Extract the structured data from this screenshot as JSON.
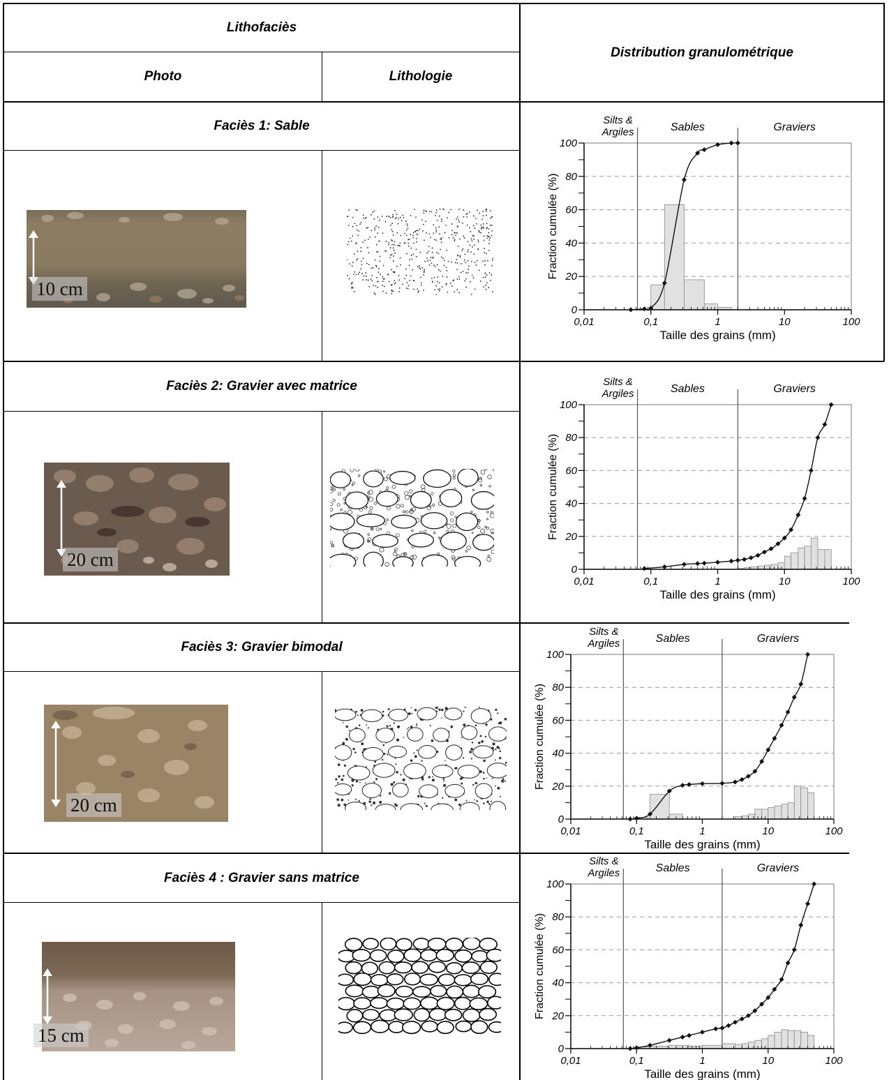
{
  "table": {
    "header_left": "Lithofaciès",
    "header_right": "Distribution granulométrique",
    "sub_photo": "Photo",
    "sub_litho": "Lithologie"
  },
  "facies": [
    {
      "title": "Faciès 1: Sable",
      "scale": "10 cm",
      "pattern": "sand"
    },
    {
      "title": "Faciès 2: Gravier avec matrice",
      "scale": "20 cm",
      "pattern": "gravel-matrix"
    },
    {
      "title": "Faciès 3: Gravier bimodal",
      "scale": "20 cm",
      "pattern": "gravel-bimodal"
    },
    {
      "title": "Faciès 4 : Gravier sans matrice",
      "scale": "15 cm",
      "pattern": "gravel-open"
    }
  ],
  "colors": {
    "border": "#000000",
    "hist_fill": "#e1e1e1",
    "hist_stroke": "#8a8a8a",
    "grid": "#9a9a9a"
  },
  "chart_data": [
    {
      "type": "bar",
      "zones": [
        "Silts & Argiles",
        "Sables",
        "Graviers"
      ],
      "zone_bounds_mm": [
        0.063,
        2
      ],
      "xlabel": "Taille des grains (mm)",
      "ylabel": "Fraction cumulée (%)",
      "xscale": "log",
      "xlim": [
        0.01,
        100
      ],
      "ylim": [
        0,
        100
      ],
      "xticks": [
        "0,01",
        "0,1",
        "1",
        "10",
        "100"
      ],
      "yticks": [
        "0",
        "20",
        "40",
        "60",
        "80",
        "100"
      ],
      "grid": "dashed horizontal",
      "histogram": [
        [
          0.1,
          0.16,
          15
        ],
        [
          0.16,
          0.315,
          63
        ],
        [
          0.315,
          0.63,
          18
        ],
        [
          0.63,
          1.0,
          3.5
        ],
        [
          1.0,
          1.6,
          1.5
        ]
      ],
      "cumulative": [
        [
          0.05,
          0
        ],
        [
          0.08,
          0.5
        ],
        [
          0.1,
          1
        ],
        [
          0.16,
          16
        ],
        [
          0.315,
          78
        ],
        [
          0.5,
          94
        ],
        [
          0.63,
          96
        ],
        [
          1.0,
          99
        ],
        [
          1.6,
          100
        ],
        [
          2,
          100
        ]
      ]
    },
    {
      "type": "bar",
      "zones": [
        "Silts & Argiles",
        "Sables",
        "Graviers"
      ],
      "zone_bounds_mm": [
        0.063,
        2
      ],
      "xlabel": "Taille des grains (mm)",
      "ylabel": "Fraction cumulée (%)",
      "xscale": "log",
      "xlim": [
        0.01,
        100
      ],
      "ylim": [
        0,
        100
      ],
      "xticks": [
        "0,01",
        "0,1",
        "1",
        "10",
        "100"
      ],
      "yticks": [
        "0",
        "20",
        "40",
        "60",
        "80",
        "100"
      ],
      "grid": "dashed horizontal",
      "histogram": [
        [
          2,
          2.5,
          0.5
        ],
        [
          2.5,
          3.15,
          1
        ],
        [
          3.15,
          4,
          1.5
        ],
        [
          4,
          5,
          2
        ],
        [
          5,
          6.3,
          2.5
        ],
        [
          6.3,
          8,
          3
        ],
        [
          8,
          10,
          4
        ],
        [
          10,
          12.5,
          8
        ],
        [
          12.5,
          16,
          10
        ],
        [
          16,
          20,
          13
        ],
        [
          20,
          25,
          14
        ],
        [
          25,
          31.5,
          19
        ],
        [
          31.5,
          40,
          12
        ],
        [
          40,
          50,
          12
        ]
      ],
      "cumulative": [
        [
          0.08,
          0.5
        ],
        [
          0.16,
          1.5
        ],
        [
          0.315,
          3
        ],
        [
          0.5,
          3.5
        ],
        [
          0.63,
          3.7
        ],
        [
          1,
          4.3
        ],
        [
          1.6,
          5
        ],
        [
          2,
          5.5
        ],
        [
          2.5,
          6
        ],
        [
          3.15,
          7
        ],
        [
          4,
          8.5
        ],
        [
          5,
          10.5
        ],
        [
          6.3,
          12.5
        ],
        [
          8,
          15.5
        ],
        [
          10,
          19
        ],
        [
          12.5,
          24
        ],
        [
          16,
          33
        ],
        [
          20,
          43
        ],
        [
          25,
          60
        ],
        [
          31.5,
          80
        ],
        [
          40,
          88
        ],
        [
          50,
          100
        ]
      ]
    },
    {
      "type": "bar",
      "zones": [
        "Silts & Argiles",
        "Sables",
        "Graviers"
      ],
      "zone_bounds_mm": [
        0.063,
        2
      ],
      "xlabel": "Taille des grains (mm)",
      "ylabel": "Fraction cumulée (%)",
      "xscale": "log",
      "xlim": [
        0.01,
        100
      ],
      "ylim": [
        0,
        100
      ],
      "xticks": [
        "0,01",
        "0,1",
        "1",
        "10",
        "100"
      ],
      "yticks": [
        "0",
        "20",
        "40",
        "60",
        "80",
        "100"
      ],
      "grid": "dashed horizontal",
      "histogram": [
        [
          0.1,
          0.16,
          1
        ],
        [
          0.16,
          0.315,
          15
        ],
        [
          0.315,
          0.5,
          3
        ],
        [
          3.15,
          4,
          1.5
        ],
        [
          4,
          5,
          2
        ],
        [
          5,
          6.3,
          3
        ],
        [
          6.3,
          8,
          6
        ],
        [
          8,
          10,
          6
        ],
        [
          10,
          12.5,
          7
        ],
        [
          12.5,
          16,
          8
        ],
        [
          16,
          20,
          9
        ],
        [
          20,
          25,
          10
        ],
        [
          25,
          31.5,
          20
        ],
        [
          31.5,
          40,
          19
        ],
        [
          40,
          50,
          16
        ]
      ],
      "cumulative": [
        [
          0.08,
          0
        ],
        [
          0.1,
          0.5
        ],
        [
          0.16,
          3
        ],
        [
          0.315,
          17
        ],
        [
          0.5,
          20.5
        ],
        [
          0.63,
          21
        ],
        [
          1,
          21.5
        ],
        [
          2,
          21.7
        ],
        [
          3.15,
          22.5
        ],
        [
          4,
          24
        ],
        [
          5,
          26
        ],
        [
          6.3,
          29
        ],
        [
          8,
          35
        ],
        [
          10,
          42
        ],
        [
          12.5,
          49
        ],
        [
          16,
          57
        ],
        [
          20,
          65
        ],
        [
          25,
          74
        ],
        [
          31.5,
          82
        ],
        [
          40,
          100
        ]
      ]
    },
    {
      "type": "bar",
      "zones": [
        "Silts & Argiles",
        "Sables",
        "Graviers"
      ],
      "zone_bounds_mm": [
        0.063,
        2
      ],
      "xlabel": "Taille des grains (mm)",
      "ylabel": "Fraction cumulée (%)",
      "xscale": "log",
      "xlim": [
        0.01,
        100
      ],
      "ylim": [
        0,
        100
      ],
      "xticks": [
        "0,01",
        "0,1",
        "1",
        "10",
        "100"
      ],
      "yticks": [
        "0",
        "20",
        "40",
        "60",
        "80",
        "100"
      ],
      "grid": "dashed horizontal",
      "histogram": [
        [
          0.1,
          0.16,
          1
        ],
        [
          0.16,
          0.315,
          1.5
        ],
        [
          0.315,
          0.63,
          2
        ],
        [
          0.63,
          1,
          1.5
        ],
        [
          1,
          2,
          2
        ],
        [
          2,
          3.15,
          3
        ],
        [
          3.15,
          4,
          2.5
        ],
        [
          4,
          5,
          3
        ],
        [
          5,
          6.3,
          4
        ],
        [
          6.3,
          8,
          5
        ],
        [
          8,
          10,
          6
        ],
        [
          10,
          12.5,
          8
        ],
        [
          12.5,
          16,
          10
        ],
        [
          16,
          20,
          11.5
        ],
        [
          20,
          25,
          11
        ],
        [
          25,
          31.5,
          11
        ],
        [
          31.5,
          40,
          10
        ],
        [
          40,
          50,
          8
        ]
      ],
      "cumulative": [
        [
          0.08,
          0
        ],
        [
          0.1,
          0.5
        ],
        [
          0.16,
          2
        ],
        [
          0.315,
          5
        ],
        [
          0.5,
          7
        ],
        [
          0.63,
          8
        ],
        [
          1,
          10
        ],
        [
          1.6,
          12
        ],
        [
          2,
          12.5
        ],
        [
          2.5,
          14
        ],
        [
          3.15,
          16
        ],
        [
          4,
          18
        ],
        [
          5,
          20
        ],
        [
          6.3,
          23
        ],
        [
          8,
          27
        ],
        [
          10,
          31
        ],
        [
          12.5,
          36
        ],
        [
          16,
          42
        ],
        [
          20,
          52
        ],
        [
          25,
          60
        ],
        [
          31.5,
          75
        ],
        [
          40,
          88
        ],
        [
          50,
          100
        ]
      ]
    }
  ]
}
